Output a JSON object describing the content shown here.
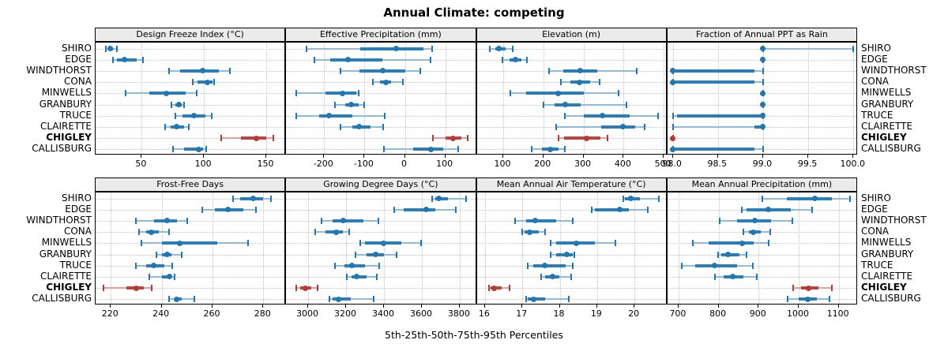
{
  "title": "Annual Climate: competing",
  "x_axis_label": "5th-25th-50th-75th-95th Percentiles",
  "sites": [
    "SHIRO",
    "EDGE",
    "WINDTHORST",
    "CONA",
    "MINWELLS",
    "GRANBURY",
    "TRUCE",
    "CLAIRETTE",
    "CHIGLEY",
    "CALLISBURG"
  ],
  "highlight_site": "CHIGLEY",
  "colors": {
    "series_normal": "#1f77b4",
    "series_normal_light": "#8fbcdd",
    "series_highlight": "#bb3732",
    "series_highlight_light": "#e0a19d",
    "strip_bg": "#ebebeb",
    "grid": "#c0c0c0",
    "panel_border": "#000000",
    "text": "#000000"
  },
  "chart_data": {
    "type": "interval-dotplot-grid",
    "percentile_labels": [
      "5th",
      "25th",
      "50th",
      "75th",
      "95th"
    ],
    "grid": {
      "rows": 2,
      "cols": 4
    },
    "panels": [
      {
        "title": "Design Freeze Index (°C)",
        "grid_row": 0,
        "grid_col": 0,
        "xlim": [
          13,
          166
        ],
        "ticks": [
          50,
          100,
          150
        ],
        "tick_labels": [
          "50",
          "100",
          "150"
        ],
        "values": [
          [
            21,
            23,
            25,
            27,
            30
          ],
          [
            27,
            30,
            36,
            46,
            51
          ],
          [
            72,
            81,
            99,
            112,
            121
          ],
          [
            91,
            95,
            103,
            107,
            108
          ],
          [
            37,
            56,
            70,
            85,
            94
          ],
          [
            74,
            77,
            80,
            82,
            84
          ],
          [
            77,
            83,
            92,
            101,
            106
          ],
          [
            69,
            73,
            78,
            84,
            88
          ],
          [
            114,
            130,
            142,
            150,
            156
          ],
          [
            75,
            84,
            96,
            99,
            102
          ]
        ]
      },
      {
        "title": "Effective Precipitation (mm)",
        "grid_row": 0,
        "grid_col": 1,
        "xlim": [
          -294,
          178
        ],
        "ticks": [
          -200,
          -100,
          0,
          100
        ],
        "tick_labels": [
          "-200",
          "-100",
          "0",
          "100"
        ],
        "values": [
          [
            -243,
            -110,
            -22,
            45,
            67
          ],
          [
            -225,
            -185,
            -140,
            -55,
            63
          ],
          [
            -160,
            -112,
            -54,
            0,
            38
          ],
          [
            -80,
            -62,
            -47,
            -35,
            -5
          ],
          [
            -270,
            -196,
            -155,
            -120,
            -114
          ],
          [
            -173,
            -148,
            -133,
            -115,
            -100
          ],
          [
            -270,
            -212,
            -187,
            -130,
            -50
          ],
          [
            -159,
            -130,
            -114,
            -85,
            -53
          ],
          [
            70,
            100,
            120,
            140,
            155
          ],
          [
            -51,
            20,
            64,
            95,
            133
          ]
        ]
      },
      {
        "title": "Elevation (m)",
        "grid_row": 0,
        "grid_col": 2,
        "xlim": [
          34,
          509
        ],
        "ticks": [
          100,
          200,
          300,
          400,
          500
        ],
        "tick_labels": [
          "100",
          "200",
          "300",
          "400",
          "500"
        ],
        "values": [
          [
            67,
            80,
            90,
            105,
            123
          ],
          [
            98,
            115,
            131,
            145,
            159
          ],
          [
            215,
            250,
            292,
            335,
            433
          ],
          [
            243,
            267,
            290,
            316,
            341
          ],
          [
            117,
            158,
            237,
            300,
            388
          ],
          [
            200,
            228,
            254,
            293,
            408
          ],
          [
            254,
            300,
            348,
            415,
            486
          ],
          [
            231,
            345,
            399,
            428,
            452
          ],
          [
            237,
            251,
            307,
            343,
            359
          ],
          [
            171,
            196,
            217,
            238,
            254
          ]
        ]
      },
      {
        "title": "Fraction of Annual PPT as Rain",
        "grid_row": 0,
        "grid_col": 3,
        "xlim": [
          97.94,
          100.05
        ],
        "ticks": [
          98,
          98.5,
          99,
          99.5,
          100
        ],
        "tick_labels": [
          "98.0",
          "98.5",
          "99.0",
          "99.5",
          "100.0"
        ],
        "values": [
          [
            99,
            99,
            99,
            99,
            100
          ],
          [
            99,
            99,
            99,
            99,
            99
          ],
          [
            98,
            98,
            98,
            98.9,
            99
          ],
          [
            98,
            98,
            98,
            98.9,
            99
          ],
          [
            99,
            99,
            99,
            99,
            99
          ],
          [
            99,
            99,
            99,
            99,
            99
          ],
          [
            98,
            98.05,
            99,
            99,
            99
          ],
          [
            98,
            98.9,
            99,
            99,
            99
          ],
          [
            98,
            98,
            98,
            98,
            98
          ],
          [
            98,
            98,
            98,
            98.9,
            99
          ]
        ]
      },
      {
        "title": "Frost-Free Days",
        "grid_row": 1,
        "grid_col": 0,
        "xlim": [
          214,
          289
        ],
        "ticks": [
          220,
          240,
          260,
          280
        ],
        "tick_labels": [
          "220",
          "240",
          "260",
          "280"
        ],
        "values": [
          [
            268,
            271,
            276,
            280,
            283
          ],
          [
            256,
            261,
            266,
            272,
            277
          ],
          [
            230,
            237,
            242,
            246,
            250
          ],
          [
            231,
            234,
            236,
            239,
            243
          ],
          [
            232,
            240,
            247,
            262,
            274
          ],
          [
            238,
            240,
            242,
            244,
            248
          ],
          [
            230,
            234,
            237,
            241,
            244
          ],
          [
            235,
            240,
            243,
            244,
            245
          ],
          [
            217,
            226,
            230,
            233,
            236
          ],
          [
            243,
            245,
            246,
            248,
            253
          ]
        ]
      },
      {
        "title": "Growing Degree Days (°C)",
        "grid_row": 1,
        "grid_col": 1,
        "xlim": [
          2884,
          3890
        ],
        "ticks": [
          3000,
          3200,
          3400,
          3600,
          3800
        ],
        "tick_labels": [
          "3000",
          "3200",
          "3400",
          "3600",
          "3800"
        ],
        "values": [
          [
            3655,
            3670,
            3688,
            3737,
            3835
          ],
          [
            3455,
            3505,
            3622,
            3671,
            3779
          ],
          [
            3072,
            3130,
            3186,
            3290,
            3371
          ],
          [
            3038,
            3090,
            3146,
            3185,
            3216
          ],
          [
            3274,
            3300,
            3400,
            3490,
            3597
          ],
          [
            3250,
            3310,
            3355,
            3400,
            3466
          ],
          [
            3142,
            3190,
            3232,
            3300,
            3374
          ],
          [
            3202,
            3230,
            3257,
            3310,
            3364
          ],
          [
            2936,
            2960,
            2985,
            3015,
            3051
          ],
          [
            3114,
            3130,
            3160,
            3225,
            3346
          ]
        ]
      },
      {
        "title": "Mean Annual Air Temperature (°C)",
        "grid_row": 1,
        "grid_col": 2,
        "xlim": [
          15.78,
          20.88
        ],
        "ticks": [
          16,
          17,
          18,
          19,
          20
        ],
        "tick_labels": [
          "16",
          "17",
          "18",
          "19",
          "20"
        ],
        "values": [
          [
            19.7,
            19.75,
            19.9,
            20.15,
            20.65
          ],
          [
            18.85,
            18.95,
            19.6,
            19.85,
            20.35
          ],
          [
            16.8,
            17.1,
            17.35,
            17.9,
            18.35
          ],
          [
            17.0,
            17.05,
            17.2,
            17.45,
            17.6
          ],
          [
            17.75,
            17.9,
            18.45,
            18.95,
            19.5
          ],
          [
            17.75,
            17.9,
            18.2,
            18.35,
            18.4
          ],
          [
            17.15,
            17.3,
            17.6,
            18.15,
            18.35
          ],
          [
            17.5,
            17.6,
            17.8,
            18.0,
            18.3
          ],
          [
            16.1,
            16.15,
            16.25,
            16.45,
            16.65
          ],
          [
            17.1,
            17.15,
            17.3,
            17.6,
            18.25
          ]
        ]
      },
      {
        "title": "Mean Annual Precipitation (mm)",
        "grid_row": 1,
        "grid_col": 3,
        "xlim": [
          672,
          1148
        ],
        "ticks": [
          700,
          800,
          900,
          1000,
          1100
        ],
        "tick_labels": [
          "700",
          "800",
          "900",
          "1000",
          "1100"
        ],
        "values": [
          [
            910,
            970,
            1040,
            1082,
            1128
          ],
          [
            858,
            870,
            925,
            980,
            1033
          ],
          [
            803,
            847,
            890,
            930,
            984
          ],
          [
            861,
            875,
            887,
            905,
            929
          ],
          [
            736,
            775,
            858,
            888,
            926
          ],
          [
            798,
            806,
            823,
            852,
            870
          ],
          [
            708,
            741,
            789,
            846,
            885
          ],
          [
            790,
            813,
            835,
            862,
            895
          ],
          [
            986,
            1005,
            1025,
            1050,
            1082
          ],
          [
            972,
            1000,
            1022,
            1045,
            1077
          ]
        ]
      }
    ]
  }
}
